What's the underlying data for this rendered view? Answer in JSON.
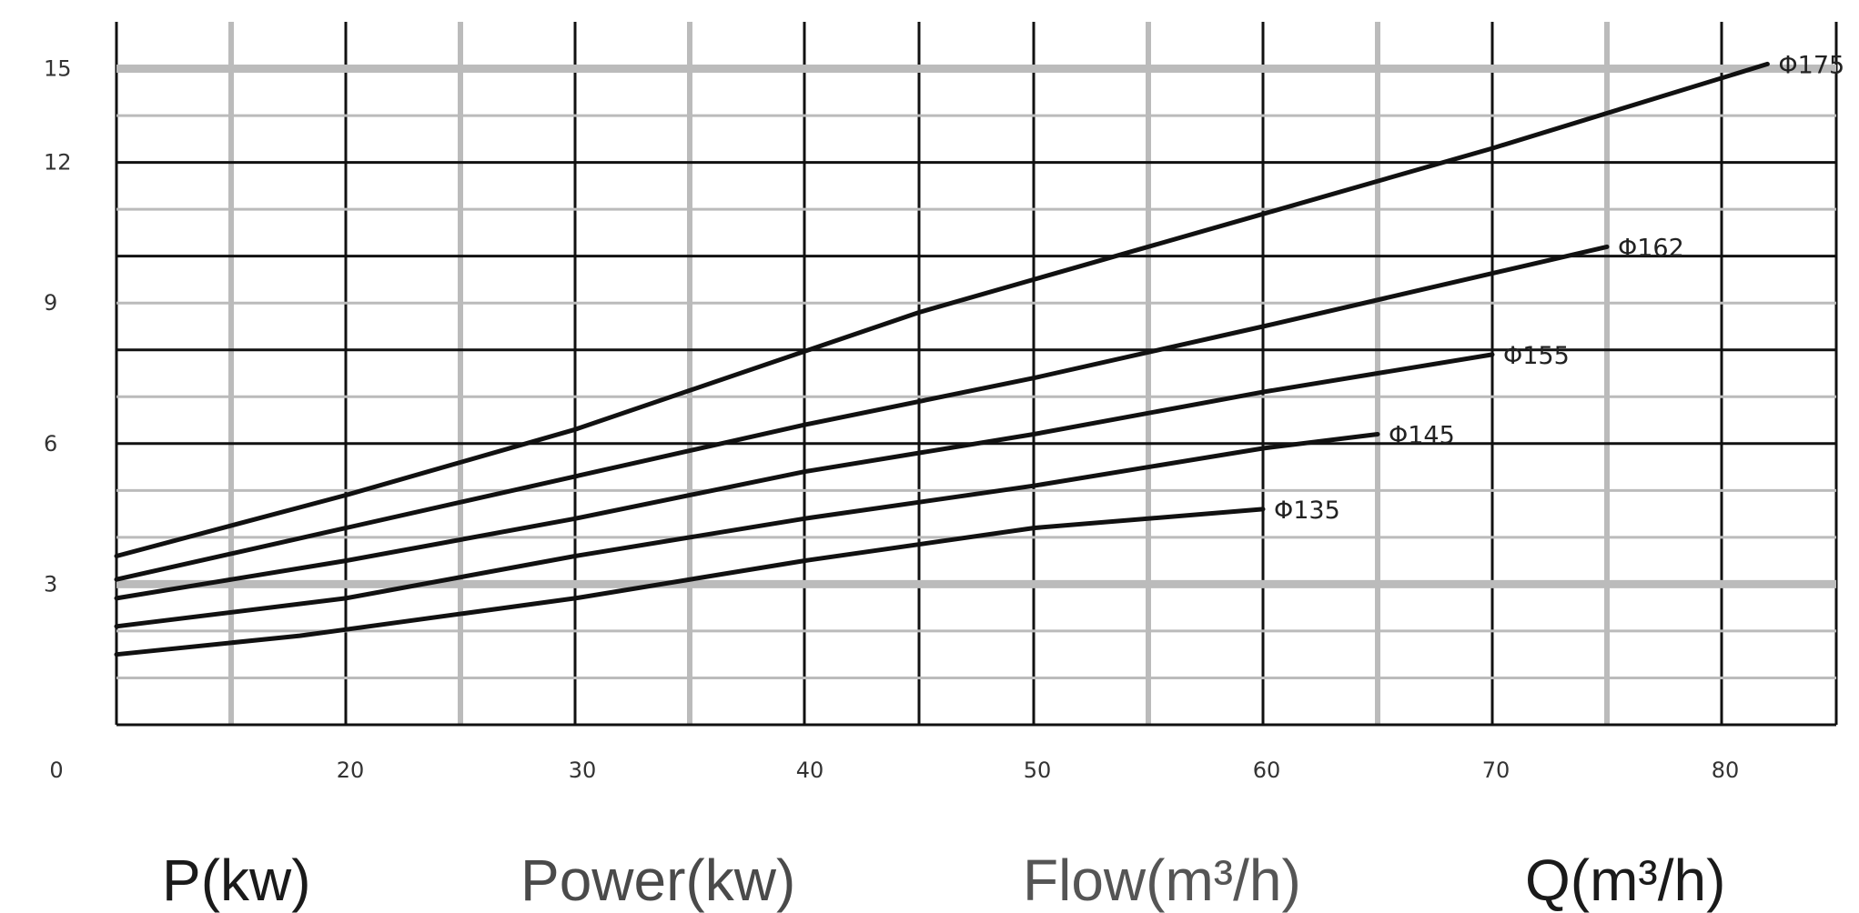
{
  "chart_data": {
    "type": "line",
    "x_tick_labels": [
      "0",
      "20",
      "30",
      "40",
      "50",
      "60",
      "70",
      "80"
    ],
    "y_tick_labels": [
      "3",
      "6",
      "9",
      "12",
      "15"
    ],
    "xlim": [
      10,
      85
    ],
    "ylim": [
      0,
      15
    ],
    "grid": true,
    "legend": "none",
    "series": [
      {
        "name": "Φ135",
        "x": [
          10,
          18,
          30,
          40,
          50,
          60
        ],
        "y": [
          1.5,
          1.9,
          2.7,
          3.5,
          4.2,
          4.6
        ]
      },
      {
        "name": "Φ145",
        "x": [
          10,
          20,
          30,
          40,
          50,
          60,
          65
        ],
        "y": [
          2.1,
          2.7,
          3.6,
          4.4,
          5.1,
          5.9,
          6.2
        ]
      },
      {
        "name": "Φ155",
        "x": [
          10,
          20,
          30,
          40,
          50,
          60,
          70
        ],
        "y": [
          2.7,
          3.5,
          4.4,
          5.4,
          6.2,
          7.1,
          7.9
        ]
      },
      {
        "name": "Φ162",
        "x": [
          10,
          20,
          30,
          40,
          50,
          60,
          75
        ],
        "y": [
          3.1,
          4.2,
          5.3,
          6.4,
          7.4,
          8.5,
          10.2
        ]
      },
      {
        "name": "Φ175",
        "x": [
          10,
          20,
          30,
          45,
          50,
          60,
          70,
          82
        ],
        "y": [
          3.6,
          4.9,
          6.3,
          8.8,
          9.5,
          10.9,
          12.3,
          14.1
        ]
      }
    ]
  },
  "captions": {
    "p_label": "P(kw)",
    "power_label": "Power(kw)",
    "flow_label": "Flow(m³/h)",
    "q_label": "Q(m³/h)"
  },
  "colors": {
    "major_grid": "#111111",
    "minor_grid": "#bbbbbb",
    "curve": "#111111",
    "caption_dark": "#1a1a1a",
    "caption_light": "#555555"
  }
}
